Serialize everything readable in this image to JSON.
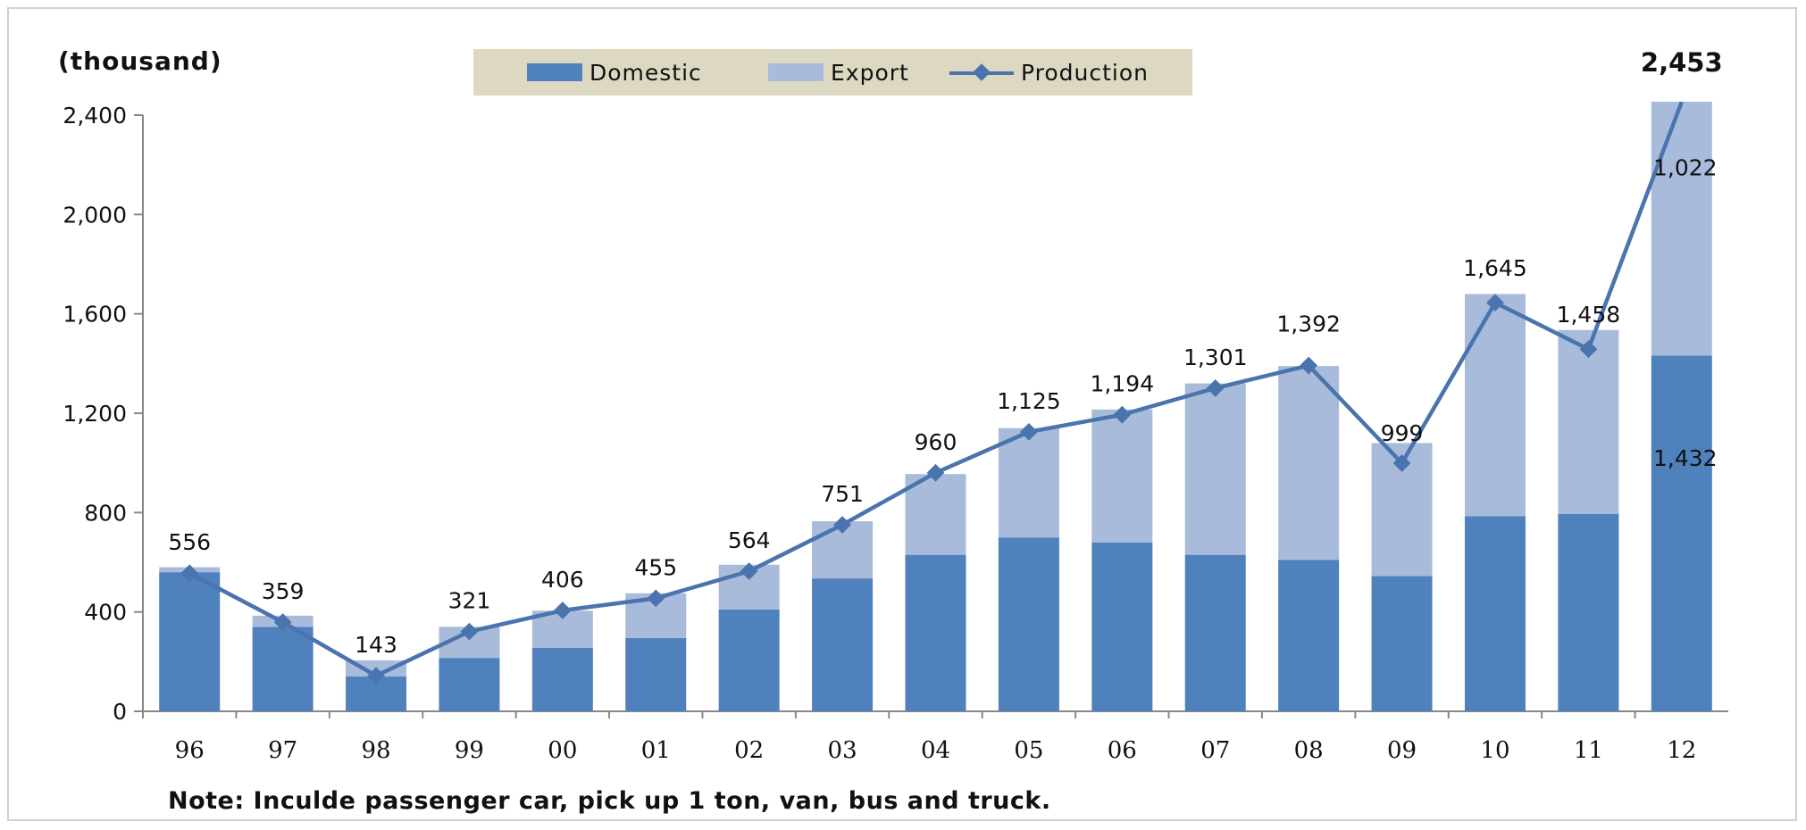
{
  "unit_label": "(thousand)",
  "note": "Note: Inculde passenger car, pick up 1 ton, van, bus and truck.",
  "colors": {
    "domestic": "#4f81bd",
    "export": "#a9bbda",
    "production": "#4a74ad",
    "legend_bg": "#ddd8c2"
  },
  "legend": [
    {
      "label": "Domestic",
      "kind": "bar",
      "color": "#4f81bd"
    },
    {
      "label": "Export",
      "kind": "bar",
      "color": "#a9bbda"
    },
    {
      "label": "Production",
      "kind": "line",
      "color": "#4a74ad"
    }
  ],
  "chart_data": {
    "type": "bar",
    "categories": [
      "96",
      "97",
      "98",
      "99",
      "00",
      "01",
      "02",
      "03",
      "04",
      "05",
      "06",
      "07",
      "08",
      "09",
      "10",
      "11",
      "12"
    ],
    "series": [
      {
        "name": "Domestic",
        "type": "stacked-bar",
        "values": [
          560,
          340,
          140,
          215,
          255,
          295,
          410,
          535,
          630,
          700,
          680,
          630,
          610,
          545,
          785,
          795,
          1432
        ]
      },
      {
        "name": "Export",
        "type": "stacked-bar",
        "values": [
          20,
          45,
          65,
          125,
          150,
          180,
          180,
          230,
          325,
          440,
          535,
          690,
          780,
          535,
          895,
          740,
          1022
        ]
      },
      {
        "name": "Production",
        "type": "line",
        "values": [
          556,
          359,
          143,
          321,
          406,
          455,
          564,
          751,
          960,
          1125,
          1194,
          1301,
          1392,
          999,
          1645,
          1458,
          2453
        ],
        "labels": [
          "556",
          "359",
          "143",
          "321",
          "406",
          "455",
          "564",
          "751",
          "960",
          "1,125",
          "1,194",
          "1,301",
          "1,392",
          "999",
          "1,645",
          "1,458",
          "2,453"
        ]
      }
    ],
    "bar_labels": [
      {
        "category": "12",
        "series": "Export",
        "text": "1,022"
      },
      {
        "category": "12",
        "series": "Domestic",
        "text": "1,432"
      }
    ],
    "ylim": [
      0,
      2400
    ],
    "yticks": [
      0,
      400,
      800,
      1200,
      1600,
      2000,
      2400
    ],
    "ytick_labels": [
      "0",
      "400",
      "800",
      "1,200",
      "1,600",
      "2,000",
      "2,400"
    ],
    "grid": false,
    "legend_position": "top-center"
  }
}
